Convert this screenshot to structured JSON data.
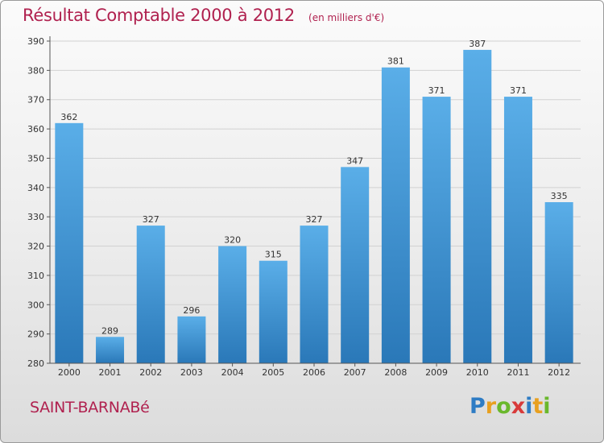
{
  "chart_data": {
    "type": "bar",
    "title": "Résultat Comptable 2000 à 2012",
    "subtitle": "(en milliers d'€)",
    "categories": [
      "2000",
      "2001",
      "2002",
      "2003",
      "2004",
      "2005",
      "2006",
      "2007",
      "2008",
      "2009",
      "2010",
      "2011",
      "2012"
    ],
    "values": [
      362,
      289,
      327,
      296,
      320,
      315,
      327,
      347,
      381,
      371,
      387,
      371,
      335
    ],
    "ylim": [
      280,
      390
    ],
    "yticks": [
      280,
      290,
      300,
      310,
      320,
      330,
      340,
      350,
      360,
      370,
      380,
      390
    ],
    "grid": true,
    "bar_color_top": "#5aaee8",
    "bar_color_bottom": "#2a78b8"
  },
  "footer": {
    "commune": "SAINT-BARNABé"
  },
  "logo": {
    "letters": [
      "P",
      "r",
      "o",
      "x",
      "i",
      "t",
      "i"
    ],
    "colors": [
      "#2e7cc4",
      "#e8a020",
      "#6ab82c",
      "#d83a3a",
      "#2e7cc4",
      "#e8a020",
      "#6ab82c"
    ]
  }
}
